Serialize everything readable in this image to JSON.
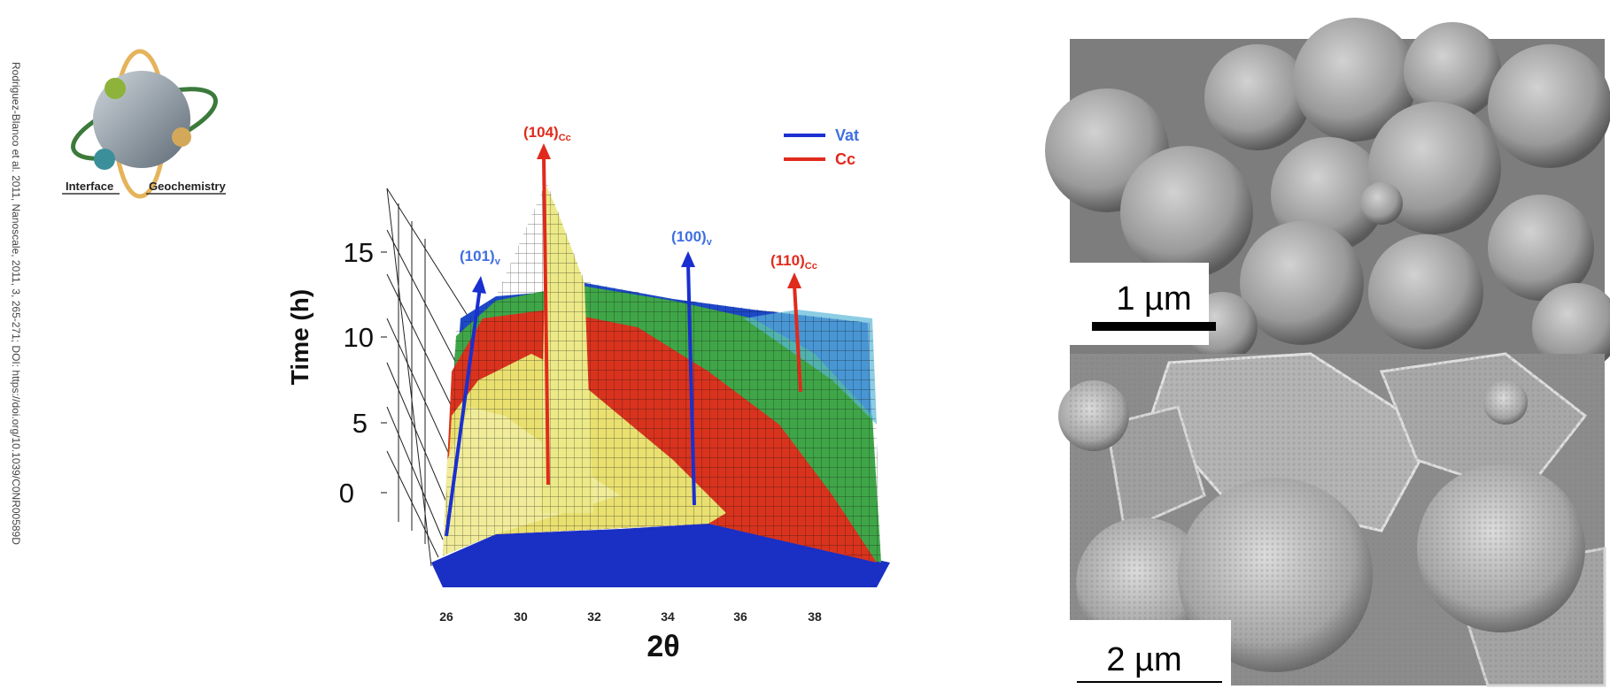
{
  "side_note": "Rodriguez-Blanco et al. 2011, Nanoscale, 2011, 3, 265-271; DOI: https://doi.org/10.1039/C0NR00589D",
  "logo": {
    "left": "Interface",
    "right": "Geochemistry"
  },
  "plot": {
    "y_axis_label": "Time (h)",
    "x_axis_label": "2θ",
    "y_ticks": [
      "15",
      "10",
      "5",
      "0"
    ],
    "x_ticks": [
      "26",
      "30",
      "32",
      "34",
      "36",
      "38"
    ],
    "peaks": [
      {
        "main": "(104)",
        "sub": "Cc"
      },
      {
        "main": "(101)",
        "sub": "v"
      },
      {
        "main": "(100)",
        "sub": "v"
      },
      {
        "main": "(110)",
        "sub": "Cc"
      }
    ],
    "legend": [
      "Vat",
      "Cc"
    ]
  },
  "sem": {
    "top_scale": "1 µm",
    "bottom_scale": "2 µm"
  }
}
